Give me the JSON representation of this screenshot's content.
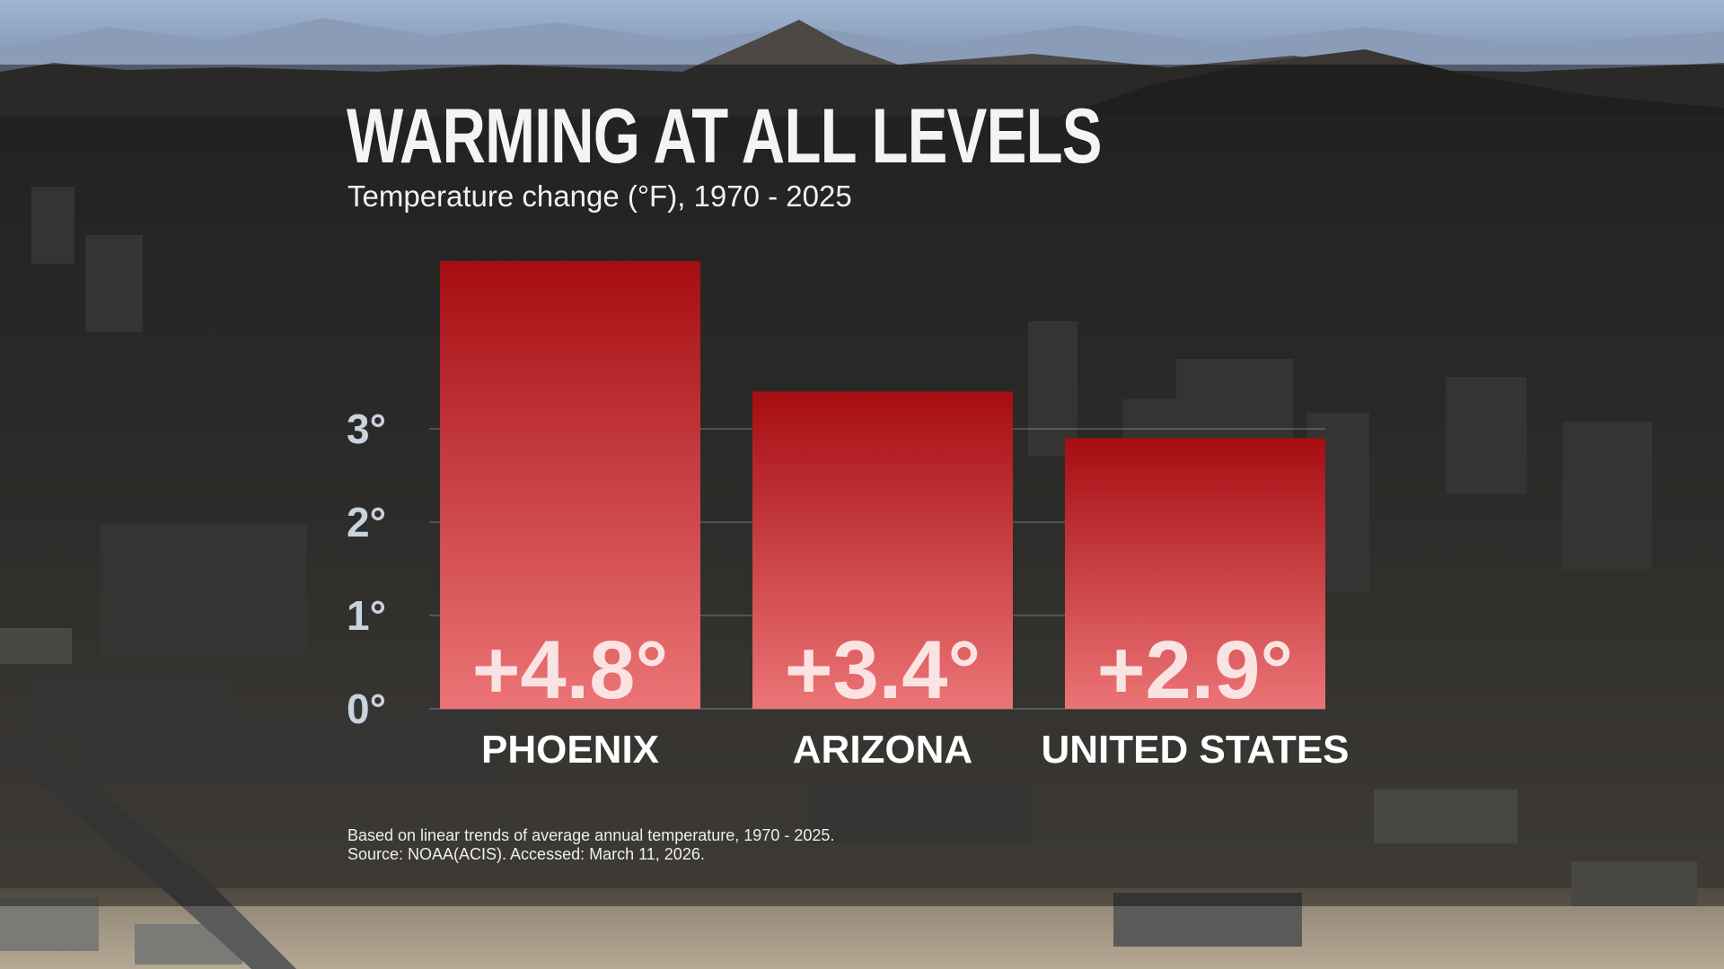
{
  "title": "WARMING AT ALL LEVELS",
  "subtitle": "Temperature change (°F), 1970 - 2025",
  "footnote": {
    "line1": "Based on linear trends of average annual temperature, 1970 - 2025.",
    "line2": "Source: NOAA(ACIS). Accessed: March 11, 2026."
  },
  "colors": {
    "bar_top": "#a50d12",
    "bar_bottom": "#ec7476",
    "value_label": "#fbe3e3",
    "tick_label": "#c9d3de",
    "title": "#f4f4f4"
  },
  "chart_data": {
    "type": "bar",
    "categories": [
      "PHOENIX",
      "ARIZONA",
      "UNITED STATES"
    ],
    "values": [
      4.8,
      3.4,
      2.9
    ],
    "value_labels": [
      "+4.8°",
      "+3.4°",
      "+2.9°"
    ],
    "title": "WARMING AT ALL LEVELS",
    "subtitle": "Temperature change (°F), 1970 - 2025",
    "xlabel": "",
    "ylabel": "",
    "ylim": [
      0,
      4.8
    ],
    "yticks": [
      0,
      1,
      2,
      3
    ],
    "ytick_labels": [
      "0°",
      "1°",
      "2°",
      "3°"
    ],
    "grid": true,
    "legend": "none"
  }
}
